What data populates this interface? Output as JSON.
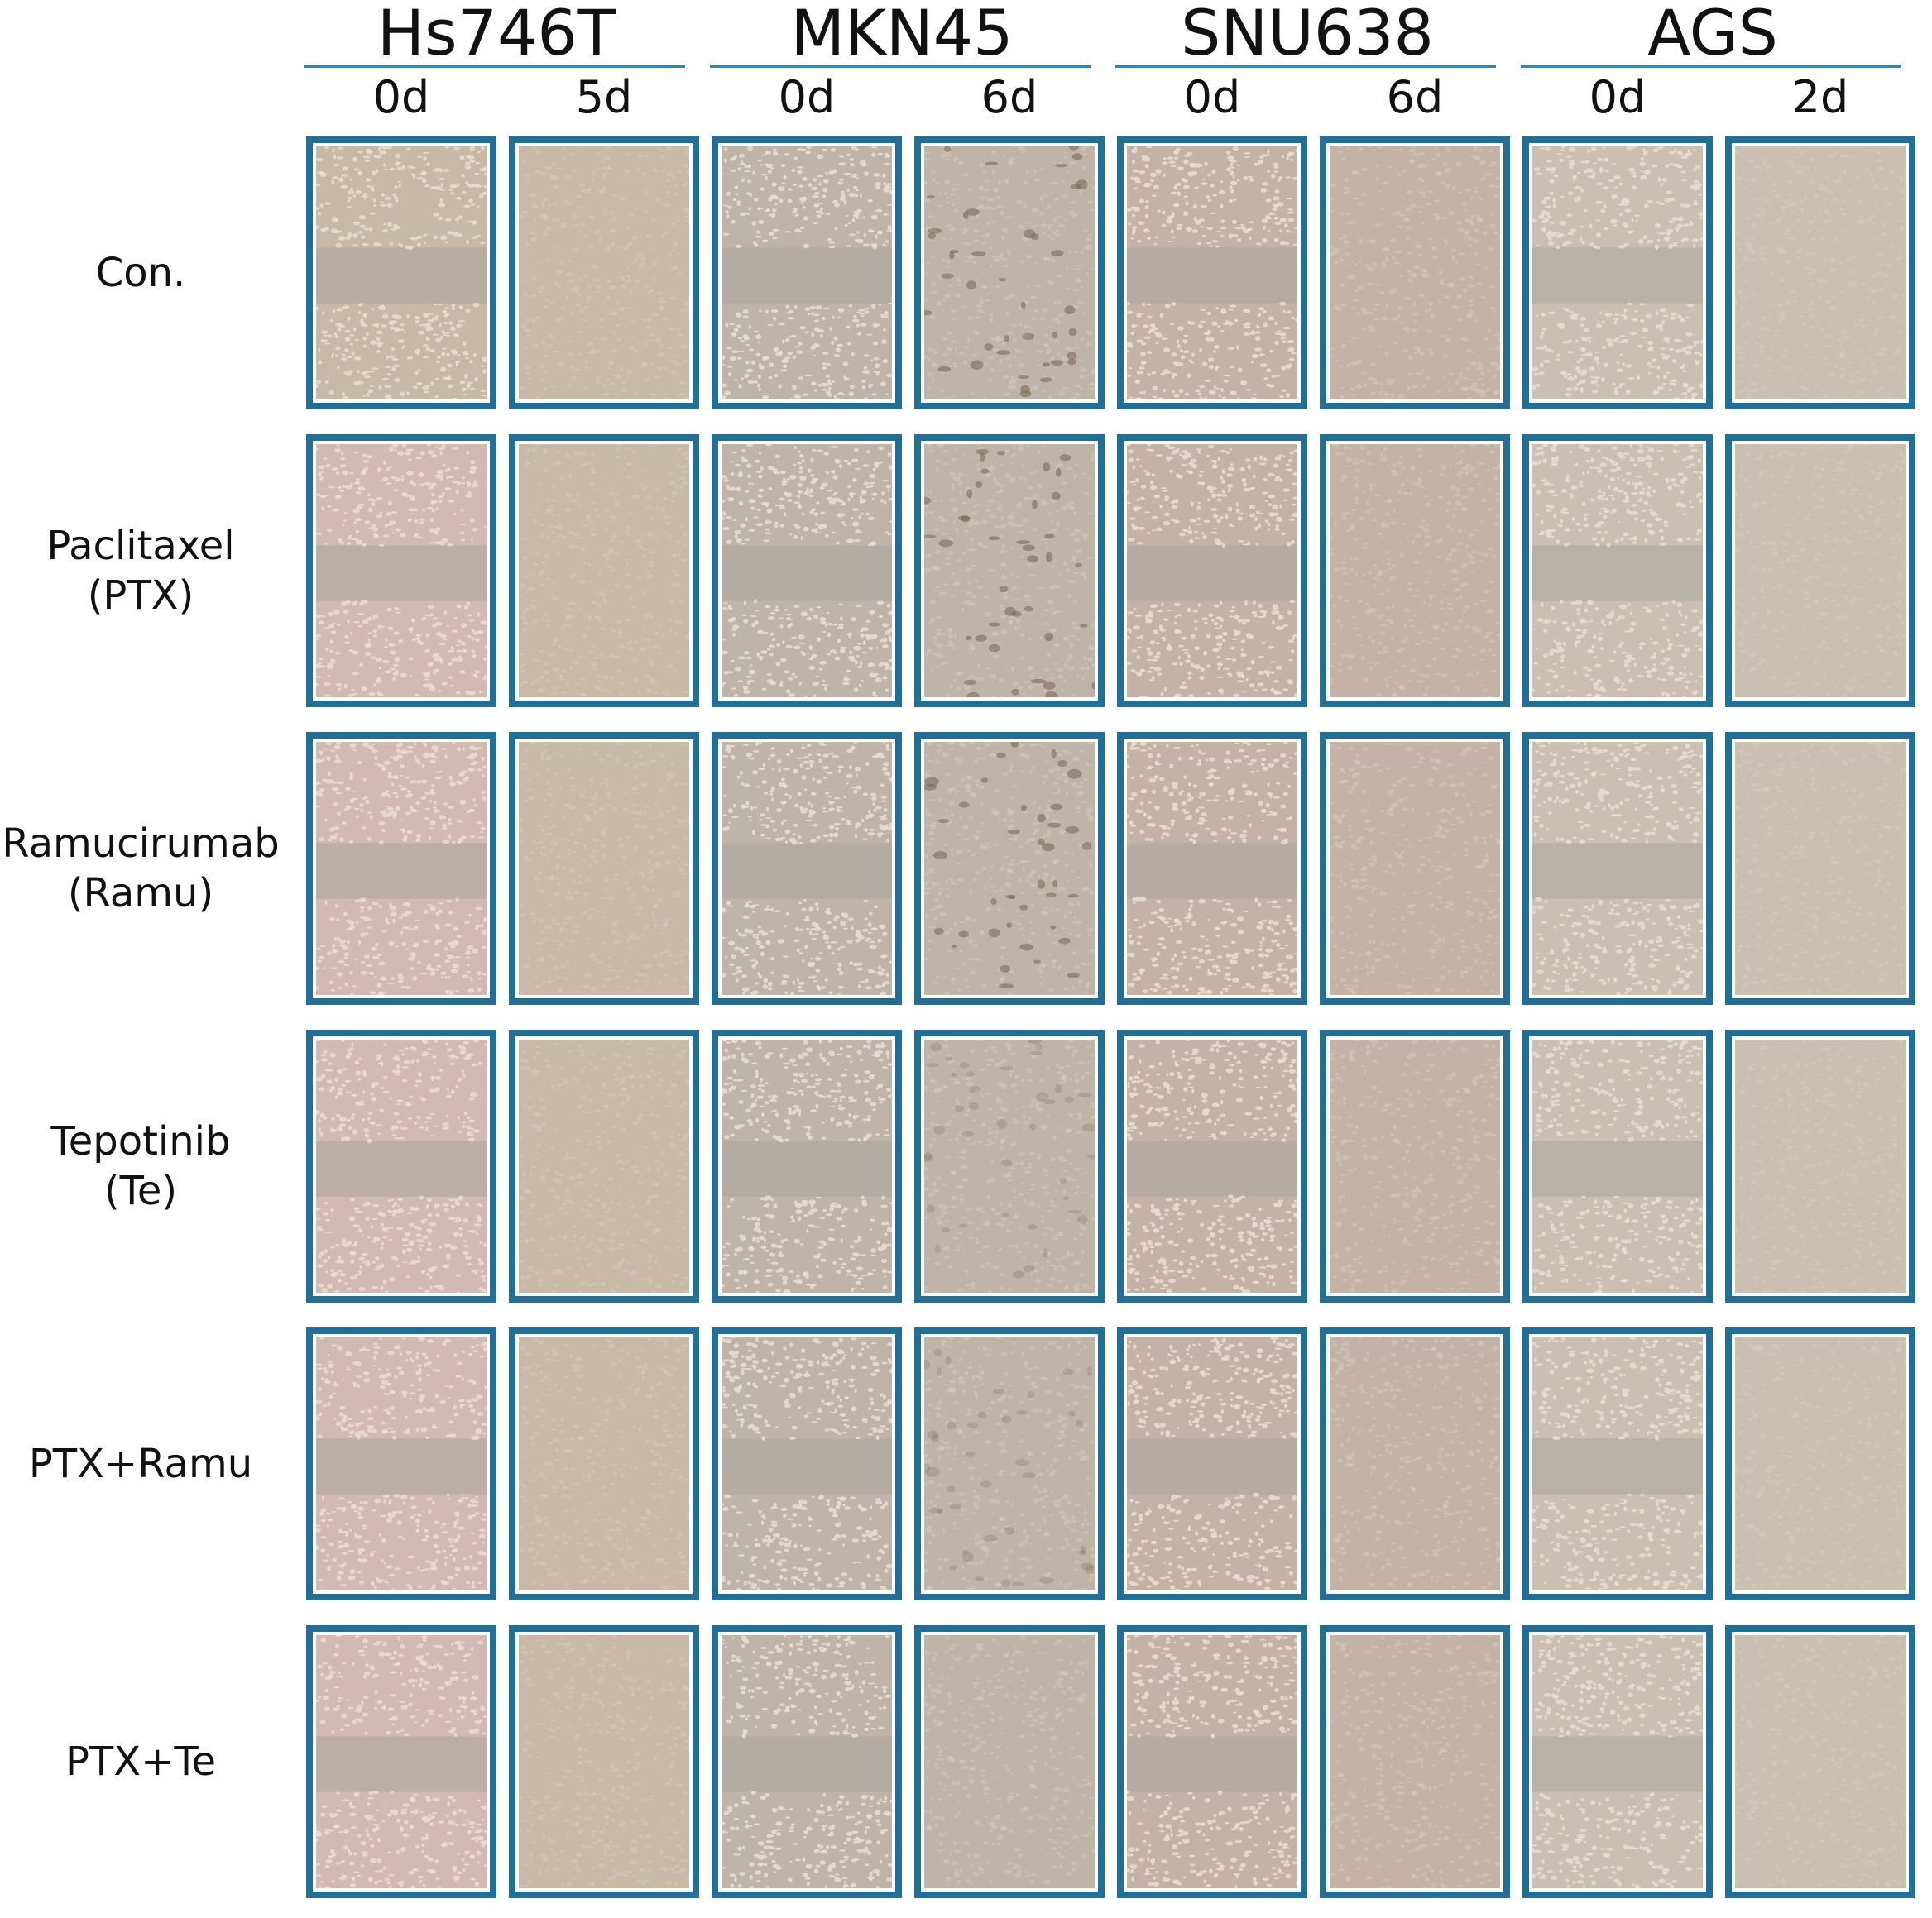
{
  "cell_lines": [
    {
      "name": "Hs746T",
      "timepoints": [
        "0d",
        "5d"
      ]
    },
    {
      "name": "MKN45",
      "timepoints": [
        "0d",
        "6d"
      ]
    },
    {
      "name": "SNU638",
      "timepoints": [
        "0d",
        "6d"
      ]
    },
    {
      "name": "AGS",
      "timepoints": [
        "0d",
        "2d"
      ]
    }
  ],
  "treatments": [
    {
      "line1": "Con.",
      "line2": ""
    },
    {
      "line1": "Paclitaxel",
      "line2": "(PTX)"
    },
    {
      "line1": "Ramucirumab",
      "line2": "(Ramu)"
    },
    {
      "line1": "Tepotinib",
      "line2": "(Te)"
    },
    {
      "line1": "PTX+Ramu",
      "line2": ""
    },
    {
      "line1": "PTX+Te",
      "line2": ""
    }
  ],
  "colors": {
    "panel_border": "#1f6f99",
    "header_rule": "#2e86c1",
    "cell_dense": "#e8d9cf",
    "background_field": "#b9aea2",
    "gap_field": "#a9a69c"
  }
}
